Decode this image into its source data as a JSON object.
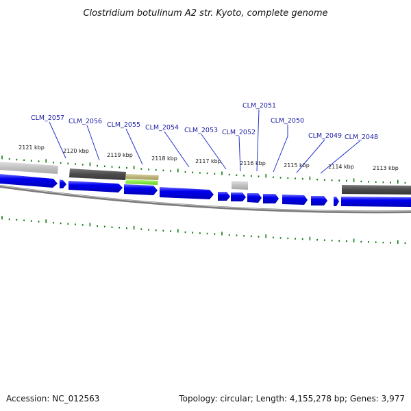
{
  "title": "Clostridium botulinum A2 str. Kyoto, complete genome",
  "footer": {
    "accession": "Accession: NC_012563",
    "summary": "Topology: circular; Length: 4,155,278 bp; Genes: 3,977"
  },
  "colors": {
    "cds_blue": "#0000ee",
    "cds_blue_light": "#5a5aff",
    "tick_green": "#0b7a0b",
    "label_blue": "#1a1aa6",
    "leader_blue": "#2233cc",
    "backbone_grey": "#777777",
    "feature_lightgrey": "#c4c4c4",
    "feature_darkgrey": "#505050",
    "feature_khaki": "#b5ac72",
    "feature_lime": "#7ee03a"
  },
  "scale_labels": [
    "2121 kbp",
    "2120 kbp",
    "2119 kbp",
    "2118 kbp",
    "2117 kbp",
    "2116 kbp",
    "2115 kbp",
    "2114 kbp",
    "2113 kbp"
  ],
  "gene_labels": [
    "CLM_2057",
    "CLM_2056",
    "CLM_2055",
    "CLM_2054",
    "CLM_2053",
    "CLM_2052",
    "CLM_2051",
    "CLM_2050",
    "CLM_2049",
    "CLM_2048"
  ]
}
